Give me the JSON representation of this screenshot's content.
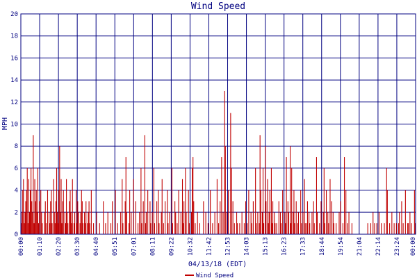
{
  "chart_data": {
    "type": "bar",
    "title": "Wind Speed",
    "xlabel": "04/13/18 (EDT)",
    "ylabel": "MPH",
    "ylim": [
      0,
      20
    ],
    "y_ticks": [
      "0",
      "2",
      "4",
      "6",
      "8",
      "10",
      "12",
      "14",
      "16",
      "18",
      "20"
    ],
    "x_ticks": [
      "00:00",
      "01:10",
      "02:20",
      "03:30",
      "04:40",
      "05:51",
      "07:01",
      "08:11",
      "09:22",
      "10:32",
      "11:42",
      "12:53",
      "14:03",
      "15:13",
      "16:23",
      "17:33",
      "18:44",
      "19:54",
      "21:04",
      "22:14",
      "23:24",
      "00:00"
    ],
    "grid": true,
    "colors": {
      "series": "#c00000",
      "grid": "#000080",
      "text": "#000080",
      "background": "#ffffff"
    },
    "series": [
      {
        "name": "Wind Speed",
        "sample_interval": "about 1 minute",
        "values": [
          1,
          2,
          4,
          5,
          1,
          2,
          3,
          4,
          6,
          1,
          5,
          2,
          4,
          6,
          3,
          2,
          9,
          1,
          5,
          3,
          4,
          2,
          6,
          1,
          3,
          0,
          4,
          2,
          1,
          0,
          0,
          2,
          3,
          1,
          0,
          4,
          0,
          2,
          1,
          3,
          4,
          1,
          0,
          5,
          2,
          1,
          3,
          6,
          2,
          1,
          4,
          8,
          2,
          5,
          1,
          3,
          4,
          0,
          2,
          1,
          5,
          2,
          1,
          0,
          3,
          4,
          2,
          1,
          5,
          0,
          1,
          2,
          0,
          4,
          1,
          3,
          2,
          0,
          1,
          2,
          4,
          3,
          1,
          0,
          2,
          1,
          3,
          0,
          1,
          2,
          3,
          1,
          0,
          4,
          0,
          0,
          1,
          0,
          0,
          0,
          2,
          0,
          0,
          0,
          1,
          0,
          0,
          0,
          0,
          3,
          0,
          0,
          1,
          0,
          0,
          2,
          0,
          0,
          0,
          1,
          0,
          3,
          0,
          0,
          0,
          4,
          0,
          0,
          1,
          0,
          0,
          0,
          2,
          0,
          5,
          1,
          0,
          0,
          3,
          7,
          2,
          0,
          0,
          1,
          4,
          0,
          2,
          0,
          0,
          5,
          0,
          0,
          3,
          0,
          0,
          1,
          0,
          2,
          0,
          6,
          1,
          0,
          3,
          0,
          9,
          1,
          2,
          0,
          4,
          0,
          0,
          3,
          1,
          0,
          2,
          0,
          6,
          1,
          0,
          0,
          3,
          0,
          4,
          1,
          0,
          0,
          2,
          5,
          0,
          1,
          0,
          3,
          0,
          0,
          4,
          1,
          0,
          2,
          0,
          0,
          6,
          1,
          0,
          0,
          3,
          2,
          0,
          1,
          0,
          4,
          0,
          0,
          2,
          0,
          5,
          1,
          3,
          0,
          6,
          2,
          0,
          0,
          4,
          1,
          0,
          0,
          2,
          6,
          7,
          3,
          0,
          1,
          0,
          0,
          2,
          0,
          0,
          1,
          0,
          0,
          0,
          0,
          3,
          0,
          0,
          2,
          0,
          0,
          1,
          0,
          0,
          4,
          0,
          0,
          1,
          0,
          0,
          2,
          0,
          0,
          5,
          0,
          1,
          0,
          3,
          0,
          7,
          0,
          2,
          0,
          13,
          8,
          0,
          2,
          0,
          4,
          0,
          0,
          11,
          6,
          0,
          3,
          0,
          1,
          0,
          0,
          2,
          1,
          0,
          0,
          1,
          0,
          0,
          2,
          0,
          0,
          1,
          0,
          3,
          0,
          1,
          0,
          4,
          0,
          0,
          2,
          1,
          0,
          3,
          0,
          0,
          6,
          1,
          0,
          2,
          0,
          1,
          9,
          4,
          0,
          2,
          6,
          1,
          0,
          8,
          3,
          0,
          5,
          1,
          2,
          4,
          0,
          6,
          1,
          3,
          0,
          2,
          1,
          0,
          1,
          0,
          0,
          3,
          0,
          2,
          1,
          0,
          4,
          0,
          0,
          2,
          1,
          7,
          0,
          3,
          2,
          0,
          8,
          1,
          6,
          0,
          2,
          4,
          1,
          0,
          3,
          0,
          1,
          2,
          0,
          0,
          4,
          1,
          0,
          2,
          0,
          5,
          1,
          0,
          1,
          3,
          0,
          2,
          1,
          0,
          0,
          2,
          0,
          3,
          1,
          0,
          0,
          7,
          2,
          0,
          0,
          1,
          0,
          3,
          0,
          0,
          2,
          6,
          1,
          0,
          4,
          0,
          2,
          1,
          0,
          5,
          0,
          3,
          0,
          2,
          1,
          0,
          0,
          1,
          0,
          0,
          0,
          2,
          0,
          3,
          0,
          0,
          1,
          0,
          7,
          0,
          4,
          0,
          1,
          0,
          2,
          0,
          0,
          0,
          1,
          0,
          0,
          0,
          0,
          0,
          0,
          0,
          0,
          0,
          0,
          0,
          0,
          0,
          0,
          0,
          0,
          0,
          0,
          0,
          0,
          1,
          0,
          0,
          0,
          1,
          0,
          0,
          2,
          0,
          1,
          0,
          0,
          1,
          0,
          0,
          2,
          0,
          0,
          1,
          0,
          0,
          0,
          1,
          0,
          0,
          6,
          4,
          0,
          0,
          1,
          0,
          0,
          2,
          0,
          0,
          1,
          0,
          0,
          1,
          0,
          0,
          1,
          2,
          0,
          0,
          3,
          0,
          1,
          0,
          0,
          4,
          0,
          0,
          1,
          1,
          0,
          2,
          0,
          1,
          0,
          0,
          0,
          4,
          1
        ]
      }
    ]
  }
}
